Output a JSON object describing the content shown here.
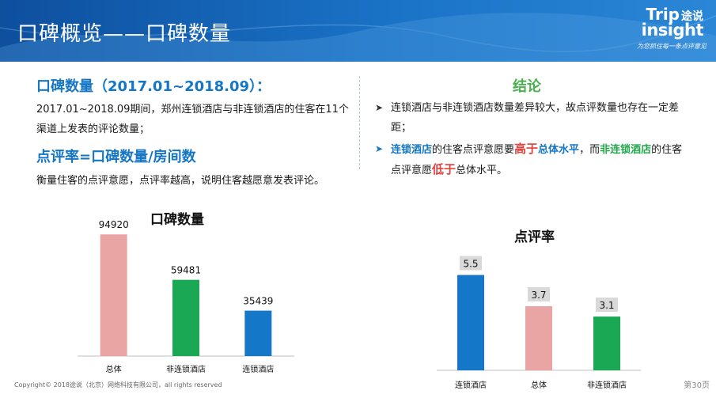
{
  "header": {
    "title": "口碑概览——口碑数量",
    "logo_line1": "Trip",
    "logo_line1_cn": "途说",
    "logo_line2": "insight",
    "logo_tagline": "为您抓住每一条点评意见"
  },
  "left": {
    "title1": "口碑数量（2017.01~2018.09）：",
    "para1": "2017.01~2018.09期间，郑州连锁酒店与非连锁酒店的住客在11个渠道上发表的评论数量；",
    "title2": "点评率=口碑数量/房间数",
    "para2": "衡量住客的点评意愿，点评率越高，说明住客越愿意发表评论。"
  },
  "conclusion": {
    "title": "结论",
    "item1": "连锁酒店与非连锁酒店数量差异较大，故点评数量也存在一定差距；",
    "item2_a": "连锁酒店",
    "item2_b": "的住客点评意愿要",
    "item2_c": "高于",
    "item2_d": "总体水平",
    "item2_e": "，而",
    "item2_f": "非连锁酒店",
    "item2_g": "的住客点评意愿",
    "item2_h": "低于",
    "item2_i": "总体水平。"
  },
  "chart_data": [
    {
      "type": "bar",
      "title": "口碑数量",
      "categories": [
        "总体",
        "非连锁酒店",
        "连锁酒店"
      ],
      "values": [
        94920,
        59481,
        35439
      ],
      "colors": [
        "#e8a5a3",
        "#1aa855",
        "#1577c7"
      ],
      "ylim": [
        0,
        100000
      ],
      "grid": false,
      "data_labels": true
    },
    {
      "type": "bar",
      "title": "点评率",
      "categories": [
        "连锁酒店",
        "总体",
        "非连锁酒店"
      ],
      "values": [
        5.5,
        3.7,
        3.1
      ],
      "colors": [
        "#1577c7",
        "#e8a5a3",
        "#1aa855"
      ],
      "ylim": [
        0,
        6.3
      ],
      "grid": false,
      "data_labels": true,
      "data_label_style": "boxed"
    }
  ],
  "footer": {
    "copyright": "Copyright© 2018途说（北京）网络科技有限公司，all rights reserved",
    "page": "第30页"
  }
}
